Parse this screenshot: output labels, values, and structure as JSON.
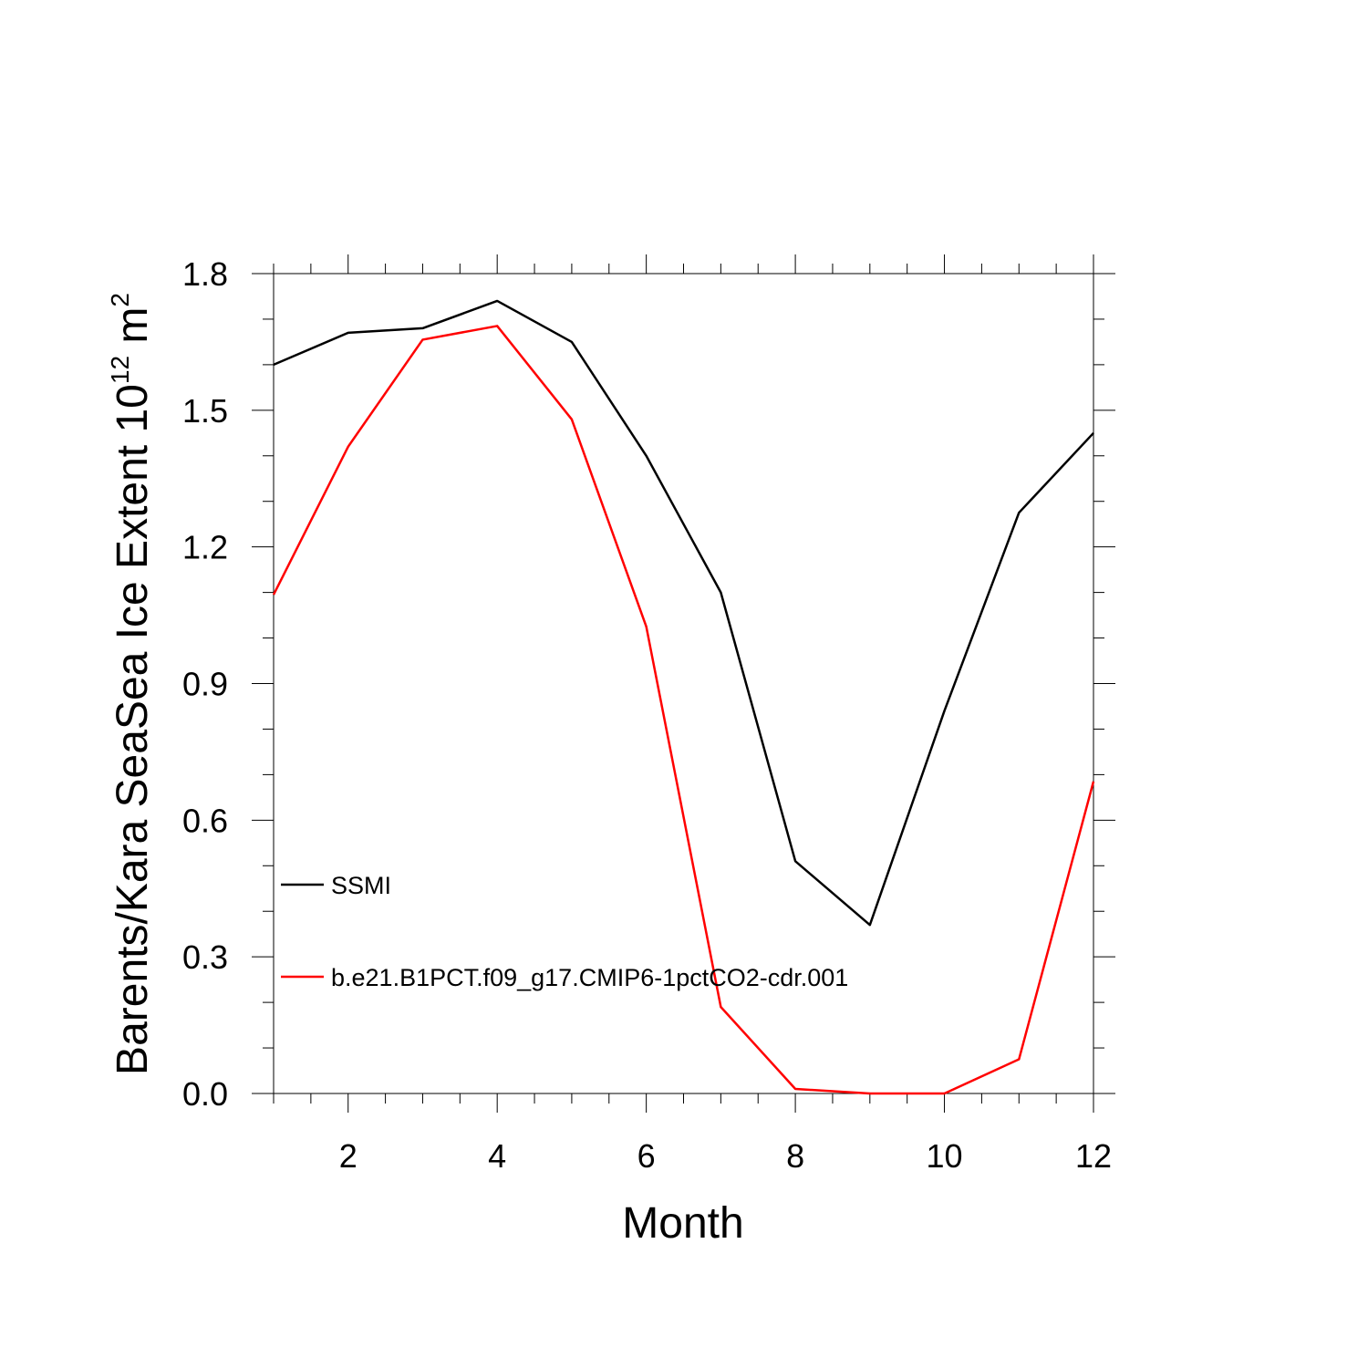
{
  "chart_data": {
    "type": "line",
    "title": "",
    "xlabel": "Month",
    "ylabel": {
      "base": "Barents/Kara SeaSea Ice Extent 10",
      "exponent": "12",
      "unit_base": " m",
      "unit_exponent": "2"
    },
    "xlim": [
      1,
      12
    ],
    "ylim": [
      0,
      1.8
    ],
    "x_ticks": [
      2,
      4,
      6,
      8,
      10,
      12
    ],
    "x_tick_labels": [
      "2",
      "4",
      "6",
      "8",
      "10",
      "12"
    ],
    "y_ticks": [
      0,
      0.3,
      0.6,
      0.9,
      1.2,
      1.5,
      1.8
    ],
    "y_tick_labels": [
      "0.0",
      "0.3",
      "0.6",
      "0.9",
      "1.2",
      "1.5",
      "1.8"
    ],
    "grid": false,
    "legend_position": "left-middle",
    "x": [
      1,
      2,
      3,
      4,
      5,
      6,
      7,
      8,
      9,
      10,
      11,
      12
    ],
    "series": [
      {
        "name": "SSMI",
        "color": "#000000",
        "values": [
          1.6,
          1.67,
          1.68,
          1.74,
          1.65,
          1.4,
          1.1,
          0.51,
          0.37,
          0.84,
          1.275,
          1.45
        ]
      },
      {
        "name": "b.e21.B1PCT.f09_g17.CMIP6-1pctCO2-cdr.001",
        "color": "#ff0000",
        "values": [
          1.095,
          1.42,
          1.655,
          1.685,
          1.48,
          1.025,
          0.19,
          0.01,
          0.0,
          0.0,
          0.075,
          0.685
        ]
      }
    ]
  }
}
